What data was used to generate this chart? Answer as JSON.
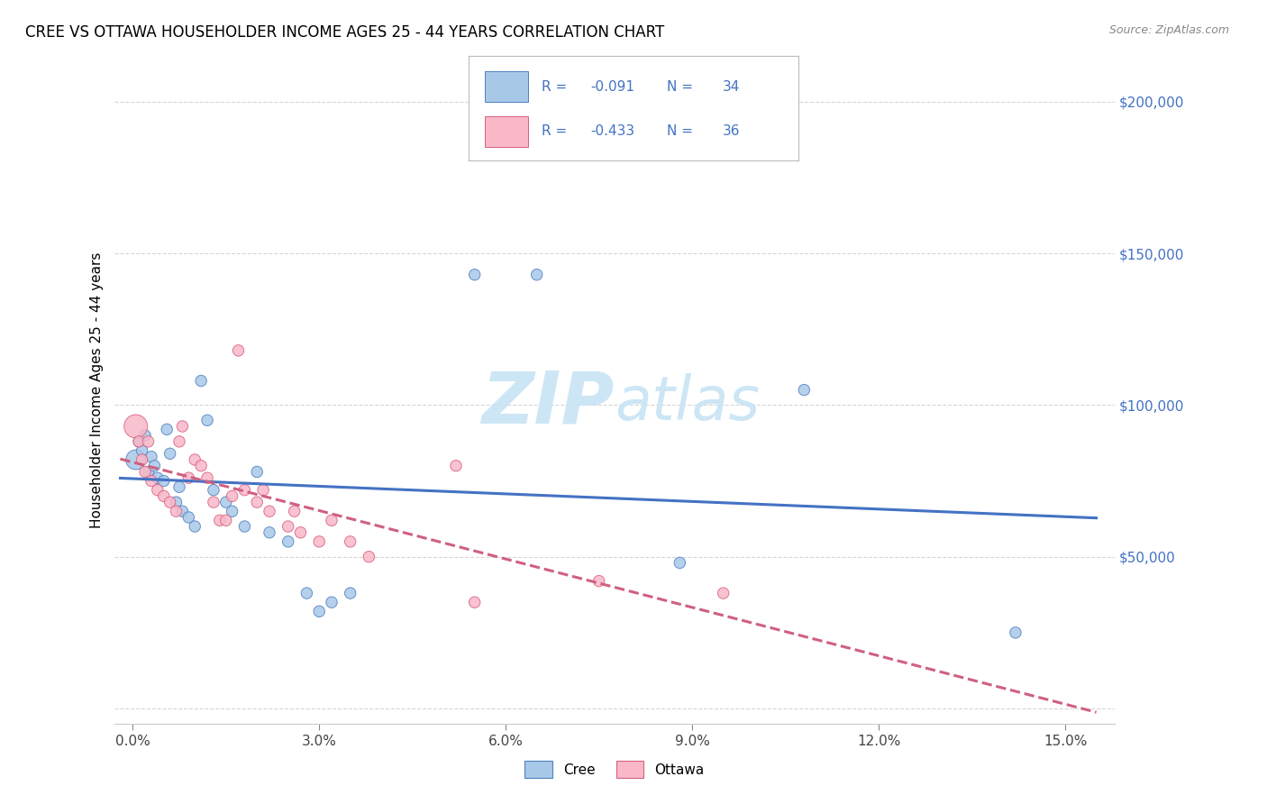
{
  "title": "CREE VS OTTAWA HOUSEHOLDER INCOME AGES 25 - 44 YEARS CORRELATION CHART",
  "source": "Source: ZipAtlas.com",
  "xlabel_ticks": [
    "0.0%",
    "3.0%",
    "6.0%",
    "9.0%",
    "12.0%",
    "15.0%"
  ],
  "xlabel_vals": [
    0.0,
    3.0,
    6.0,
    9.0,
    12.0,
    15.0
  ],
  "ylabel": "Householder Income Ages 25 - 44 years",
  "ylabel_ticks": [
    0,
    50000,
    100000,
    150000,
    200000
  ],
  "ylabel_labels": [
    "",
    "$50,000",
    "$100,000",
    "$150,000",
    "$200,000"
  ],
  "cree_R": "-0.091",
  "cree_N": "34",
  "ottawa_R": "-0.433",
  "ottawa_N": "36",
  "cree_color": "#a8c8e8",
  "ottawa_color": "#f8b8c8",
  "cree_edge_color": "#5080c0",
  "ottawa_edge_color": "#d86080",
  "cree_line_color": "#4472c4",
  "ottawa_line_color": "#d06080",
  "yaxis_label_color": "#4472c4",
  "legend_text_color": "#4472c4",
  "R_color": "#cc2266",
  "watermark_color": "#c8e4f4",
  "cree_x": [
    0.05,
    0.1,
    0.15,
    0.2,
    0.25,
    0.3,
    0.35,
    0.4,
    0.5,
    0.55,
    0.6,
    0.7,
    0.75,
    0.8,
    0.9,
    1.0,
    1.1,
    1.2,
    1.3,
    1.5,
    1.6,
    1.8,
    2.0,
    2.2,
    2.5,
    2.8,
    3.0,
    3.2,
    3.5,
    5.5,
    6.5,
    8.8,
    10.8,
    14.2
  ],
  "cree_y": [
    82000,
    88000,
    85000,
    90000,
    78000,
    83000,
    80000,
    76000,
    75000,
    92000,
    84000,
    68000,
    73000,
    65000,
    63000,
    60000,
    108000,
    95000,
    72000,
    68000,
    65000,
    60000,
    78000,
    58000,
    55000,
    38000,
    32000,
    35000,
    38000,
    143000,
    143000,
    48000,
    105000,
    25000
  ],
  "ottawa_x": [
    0.05,
    0.1,
    0.15,
    0.2,
    0.25,
    0.3,
    0.4,
    0.5,
    0.6,
    0.7,
    0.75,
    0.8,
    0.9,
    1.0,
    1.1,
    1.2,
    1.3,
    1.4,
    1.5,
    1.6,
    1.7,
    1.8,
    2.0,
    2.1,
    2.2,
    2.5,
    2.6,
    2.7,
    3.0,
    3.2,
    3.5,
    3.8,
    5.2,
    5.5,
    7.5,
    9.5
  ],
  "ottawa_y": [
    93000,
    88000,
    82000,
    78000,
    88000,
    75000,
    72000,
    70000,
    68000,
    65000,
    88000,
    93000,
    76000,
    82000,
    80000,
    76000,
    68000,
    62000,
    62000,
    70000,
    118000,
    72000,
    68000,
    72000,
    65000,
    60000,
    65000,
    58000,
    55000,
    62000,
    55000,
    50000,
    80000,
    35000,
    42000,
    38000
  ],
  "cree_sizes": [
    250,
    80,
    80,
    80,
    80,
    80,
    80,
    80,
    80,
    80,
    80,
    80,
    80,
    80,
    80,
    80,
    80,
    80,
    80,
    80,
    80,
    80,
    80,
    80,
    80,
    80,
    80,
    80,
    80,
    80,
    80,
    80,
    80,
    80
  ],
  "ottawa_sizes": [
    350,
    80,
    80,
    80,
    80,
    80,
    80,
    80,
    80,
    80,
    80,
    80,
    80,
    80,
    80,
    80,
    80,
    80,
    80,
    80,
    80,
    80,
    80,
    80,
    80,
    80,
    80,
    80,
    80,
    80,
    80,
    80,
    80,
    80,
    80,
    80
  ]
}
